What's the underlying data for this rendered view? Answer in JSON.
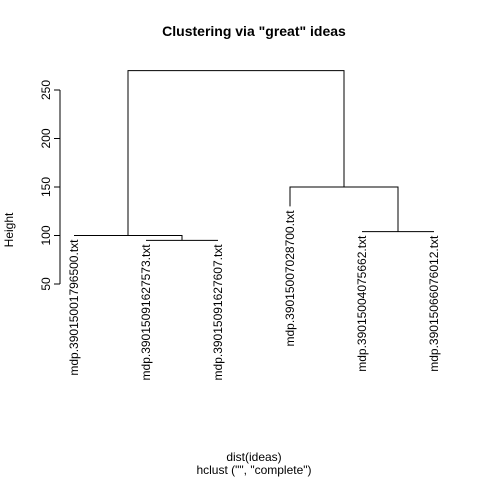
{
  "chart_data": {
    "type": "dendrogram",
    "title": "Clustering via \"great\" ideas",
    "xlabel": "dist(ideas)",
    "sublabel": "hclust (\"\", \"complete\")",
    "ylabel": "Height",
    "ylim": [
      50,
      280
    ],
    "yticks": [
      50,
      100,
      150,
      200,
      250
    ],
    "yticks_labels": [
      "50",
      "100",
      "150",
      "200",
      "250"
    ],
    "leaves": [
      "mdp.39015001796500.txt",
      "mdp.39015091627573.txt",
      "mdp.39015091627607.txt",
      "mdp.39015007028700.txt",
      "mdp.39015004075662.txt",
      "mdp.39015066076012.txt"
    ],
    "leaf_heights": [
      100,
      95,
      95,
      130,
      104,
      104
    ],
    "merges": [
      {
        "left": {
          "leaf": 1
        },
        "right": {
          "leaf": 2
        },
        "height": 95
      },
      {
        "left": {
          "leaf": 0
        },
        "right": {
          "merge": 0
        },
        "height": 100
      },
      {
        "left": {
          "leaf": 4
        },
        "right": {
          "leaf": 5
        },
        "height": 104
      },
      {
        "left": {
          "leaf": 3
        },
        "right": {
          "merge": 2
        },
        "height": 150
      },
      {
        "left": {
          "merge": 1
        },
        "right": {
          "merge": 3
        },
        "height": 270
      }
    ]
  }
}
